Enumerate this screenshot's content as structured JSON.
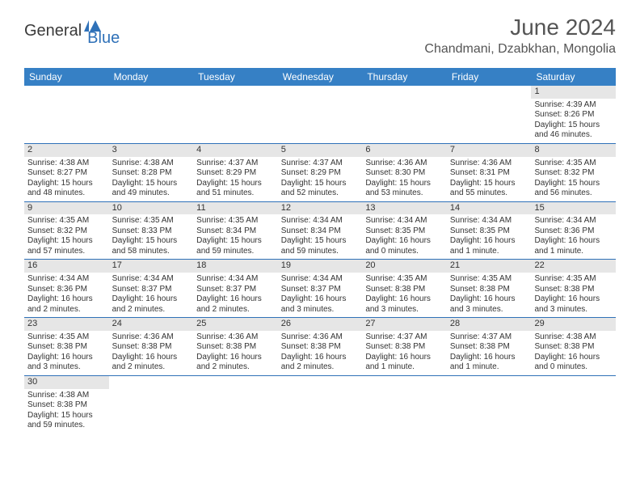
{
  "brand": {
    "general": "General",
    "blue": "Blue"
  },
  "title": "June 2024",
  "location": "Chandmani, Dzabkhan, Mongolia",
  "colors": {
    "header_bg": "#3680c5",
    "row_border": "#2f71b8",
    "daynum_bg": "#e6e6e6",
    "text": "#333333",
    "brand_blue": "#2f71b8"
  },
  "weekdays": [
    "Sunday",
    "Monday",
    "Tuesday",
    "Wednesday",
    "Thursday",
    "Friday",
    "Saturday"
  ],
  "weeks": [
    [
      null,
      null,
      null,
      null,
      null,
      null,
      {
        "d": "1",
        "sr": "Sunrise: 4:39 AM",
        "ss": "Sunset: 8:26 PM",
        "dl1": "Daylight: 15 hours",
        "dl2": "and 46 minutes."
      }
    ],
    [
      {
        "d": "2",
        "sr": "Sunrise: 4:38 AM",
        "ss": "Sunset: 8:27 PM",
        "dl1": "Daylight: 15 hours",
        "dl2": "and 48 minutes."
      },
      {
        "d": "3",
        "sr": "Sunrise: 4:38 AM",
        "ss": "Sunset: 8:28 PM",
        "dl1": "Daylight: 15 hours",
        "dl2": "and 49 minutes."
      },
      {
        "d": "4",
        "sr": "Sunrise: 4:37 AM",
        "ss": "Sunset: 8:29 PM",
        "dl1": "Daylight: 15 hours",
        "dl2": "and 51 minutes."
      },
      {
        "d": "5",
        "sr": "Sunrise: 4:37 AM",
        "ss": "Sunset: 8:29 PM",
        "dl1": "Daylight: 15 hours",
        "dl2": "and 52 minutes."
      },
      {
        "d": "6",
        "sr": "Sunrise: 4:36 AM",
        "ss": "Sunset: 8:30 PM",
        "dl1": "Daylight: 15 hours",
        "dl2": "and 53 minutes."
      },
      {
        "d": "7",
        "sr": "Sunrise: 4:36 AM",
        "ss": "Sunset: 8:31 PM",
        "dl1": "Daylight: 15 hours",
        "dl2": "and 55 minutes."
      },
      {
        "d": "8",
        "sr": "Sunrise: 4:35 AM",
        "ss": "Sunset: 8:32 PM",
        "dl1": "Daylight: 15 hours",
        "dl2": "and 56 minutes."
      }
    ],
    [
      {
        "d": "9",
        "sr": "Sunrise: 4:35 AM",
        "ss": "Sunset: 8:32 PM",
        "dl1": "Daylight: 15 hours",
        "dl2": "and 57 minutes."
      },
      {
        "d": "10",
        "sr": "Sunrise: 4:35 AM",
        "ss": "Sunset: 8:33 PM",
        "dl1": "Daylight: 15 hours",
        "dl2": "and 58 minutes."
      },
      {
        "d": "11",
        "sr": "Sunrise: 4:35 AM",
        "ss": "Sunset: 8:34 PM",
        "dl1": "Daylight: 15 hours",
        "dl2": "and 59 minutes."
      },
      {
        "d": "12",
        "sr": "Sunrise: 4:34 AM",
        "ss": "Sunset: 8:34 PM",
        "dl1": "Daylight: 15 hours",
        "dl2": "and 59 minutes."
      },
      {
        "d": "13",
        "sr": "Sunrise: 4:34 AM",
        "ss": "Sunset: 8:35 PM",
        "dl1": "Daylight: 16 hours",
        "dl2": "and 0 minutes."
      },
      {
        "d": "14",
        "sr": "Sunrise: 4:34 AM",
        "ss": "Sunset: 8:35 PM",
        "dl1": "Daylight: 16 hours",
        "dl2": "and 1 minute."
      },
      {
        "d": "15",
        "sr": "Sunrise: 4:34 AM",
        "ss": "Sunset: 8:36 PM",
        "dl1": "Daylight: 16 hours",
        "dl2": "and 1 minute."
      }
    ],
    [
      {
        "d": "16",
        "sr": "Sunrise: 4:34 AM",
        "ss": "Sunset: 8:36 PM",
        "dl1": "Daylight: 16 hours",
        "dl2": "and 2 minutes."
      },
      {
        "d": "17",
        "sr": "Sunrise: 4:34 AM",
        "ss": "Sunset: 8:37 PM",
        "dl1": "Daylight: 16 hours",
        "dl2": "and 2 minutes."
      },
      {
        "d": "18",
        "sr": "Sunrise: 4:34 AM",
        "ss": "Sunset: 8:37 PM",
        "dl1": "Daylight: 16 hours",
        "dl2": "and 2 minutes."
      },
      {
        "d": "19",
        "sr": "Sunrise: 4:34 AM",
        "ss": "Sunset: 8:37 PM",
        "dl1": "Daylight: 16 hours",
        "dl2": "and 3 minutes."
      },
      {
        "d": "20",
        "sr": "Sunrise: 4:35 AM",
        "ss": "Sunset: 8:38 PM",
        "dl1": "Daylight: 16 hours",
        "dl2": "and 3 minutes."
      },
      {
        "d": "21",
        "sr": "Sunrise: 4:35 AM",
        "ss": "Sunset: 8:38 PM",
        "dl1": "Daylight: 16 hours",
        "dl2": "and 3 minutes."
      },
      {
        "d": "22",
        "sr": "Sunrise: 4:35 AM",
        "ss": "Sunset: 8:38 PM",
        "dl1": "Daylight: 16 hours",
        "dl2": "and 3 minutes."
      }
    ],
    [
      {
        "d": "23",
        "sr": "Sunrise: 4:35 AM",
        "ss": "Sunset: 8:38 PM",
        "dl1": "Daylight: 16 hours",
        "dl2": "and 3 minutes."
      },
      {
        "d": "24",
        "sr": "Sunrise: 4:36 AM",
        "ss": "Sunset: 8:38 PM",
        "dl1": "Daylight: 16 hours",
        "dl2": "and 2 minutes."
      },
      {
        "d": "25",
        "sr": "Sunrise: 4:36 AM",
        "ss": "Sunset: 8:38 PM",
        "dl1": "Daylight: 16 hours",
        "dl2": "and 2 minutes."
      },
      {
        "d": "26",
        "sr": "Sunrise: 4:36 AM",
        "ss": "Sunset: 8:38 PM",
        "dl1": "Daylight: 16 hours",
        "dl2": "and 2 minutes."
      },
      {
        "d": "27",
        "sr": "Sunrise: 4:37 AM",
        "ss": "Sunset: 8:38 PM",
        "dl1": "Daylight: 16 hours",
        "dl2": "and 1 minute."
      },
      {
        "d": "28",
        "sr": "Sunrise: 4:37 AM",
        "ss": "Sunset: 8:38 PM",
        "dl1": "Daylight: 16 hours",
        "dl2": "and 1 minute."
      },
      {
        "d": "29",
        "sr": "Sunrise: 4:38 AM",
        "ss": "Sunset: 8:38 PM",
        "dl1": "Daylight: 16 hours",
        "dl2": "and 0 minutes."
      }
    ],
    [
      {
        "d": "30",
        "sr": "Sunrise: 4:38 AM",
        "ss": "Sunset: 8:38 PM",
        "dl1": "Daylight: 15 hours",
        "dl2": "and 59 minutes."
      },
      null,
      null,
      null,
      null,
      null,
      null
    ]
  ]
}
